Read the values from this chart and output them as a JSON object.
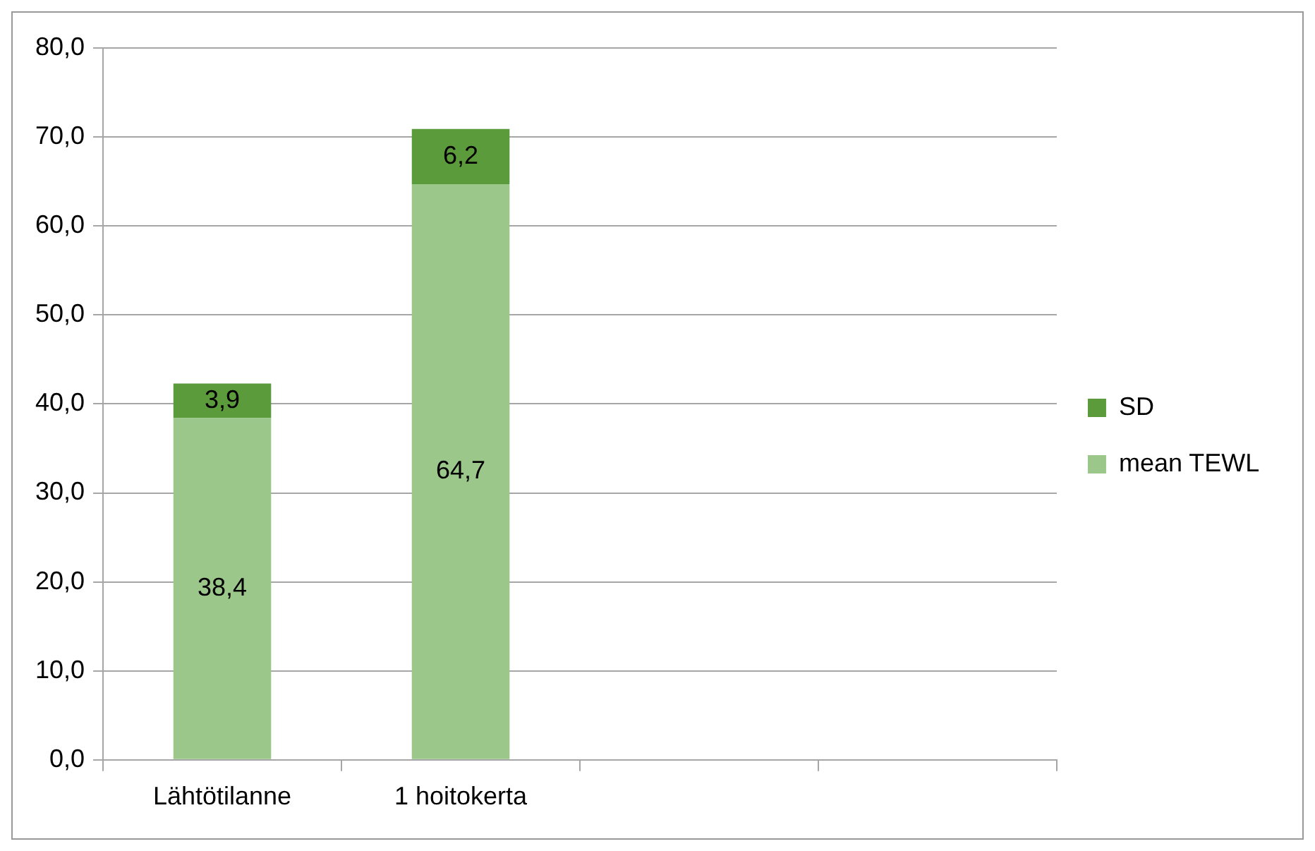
{
  "chart_data": {
    "type": "bar",
    "stacked": true,
    "categories": [
      "Lähtötilanne",
      "1 hoitokerta",
      null,
      null
    ],
    "series": [
      {
        "name": "mean TEWL",
        "color": "#9bc78a",
        "values": [
          38.4,
          64.7,
          null,
          null
        ],
        "value_labels": [
          "38,4",
          "64,7",
          null,
          null
        ]
      },
      {
        "name": "SD",
        "color": "#5b9b3c",
        "values": [
          3.9,
          6.2,
          null,
          null
        ],
        "value_labels": [
          "3,9",
          "6,2",
          null,
          null
        ]
      }
    ],
    "ylim": [
      0,
      80
    ],
    "yticks": [
      {
        "value": 0,
        "label": "0,0"
      },
      {
        "value": 10,
        "label": "10,0"
      },
      {
        "value": 20,
        "label": "20,0"
      },
      {
        "value": 30,
        "label": "30,0"
      },
      {
        "value": 40,
        "label": "40,0"
      },
      {
        "value": 50,
        "label": "50,0"
      },
      {
        "value": 60,
        "label": "60,0"
      },
      {
        "value": 70,
        "label": "70,0"
      },
      {
        "value": 80,
        "label": "80,0"
      }
    ],
    "grid": "y",
    "legend": "right"
  }
}
